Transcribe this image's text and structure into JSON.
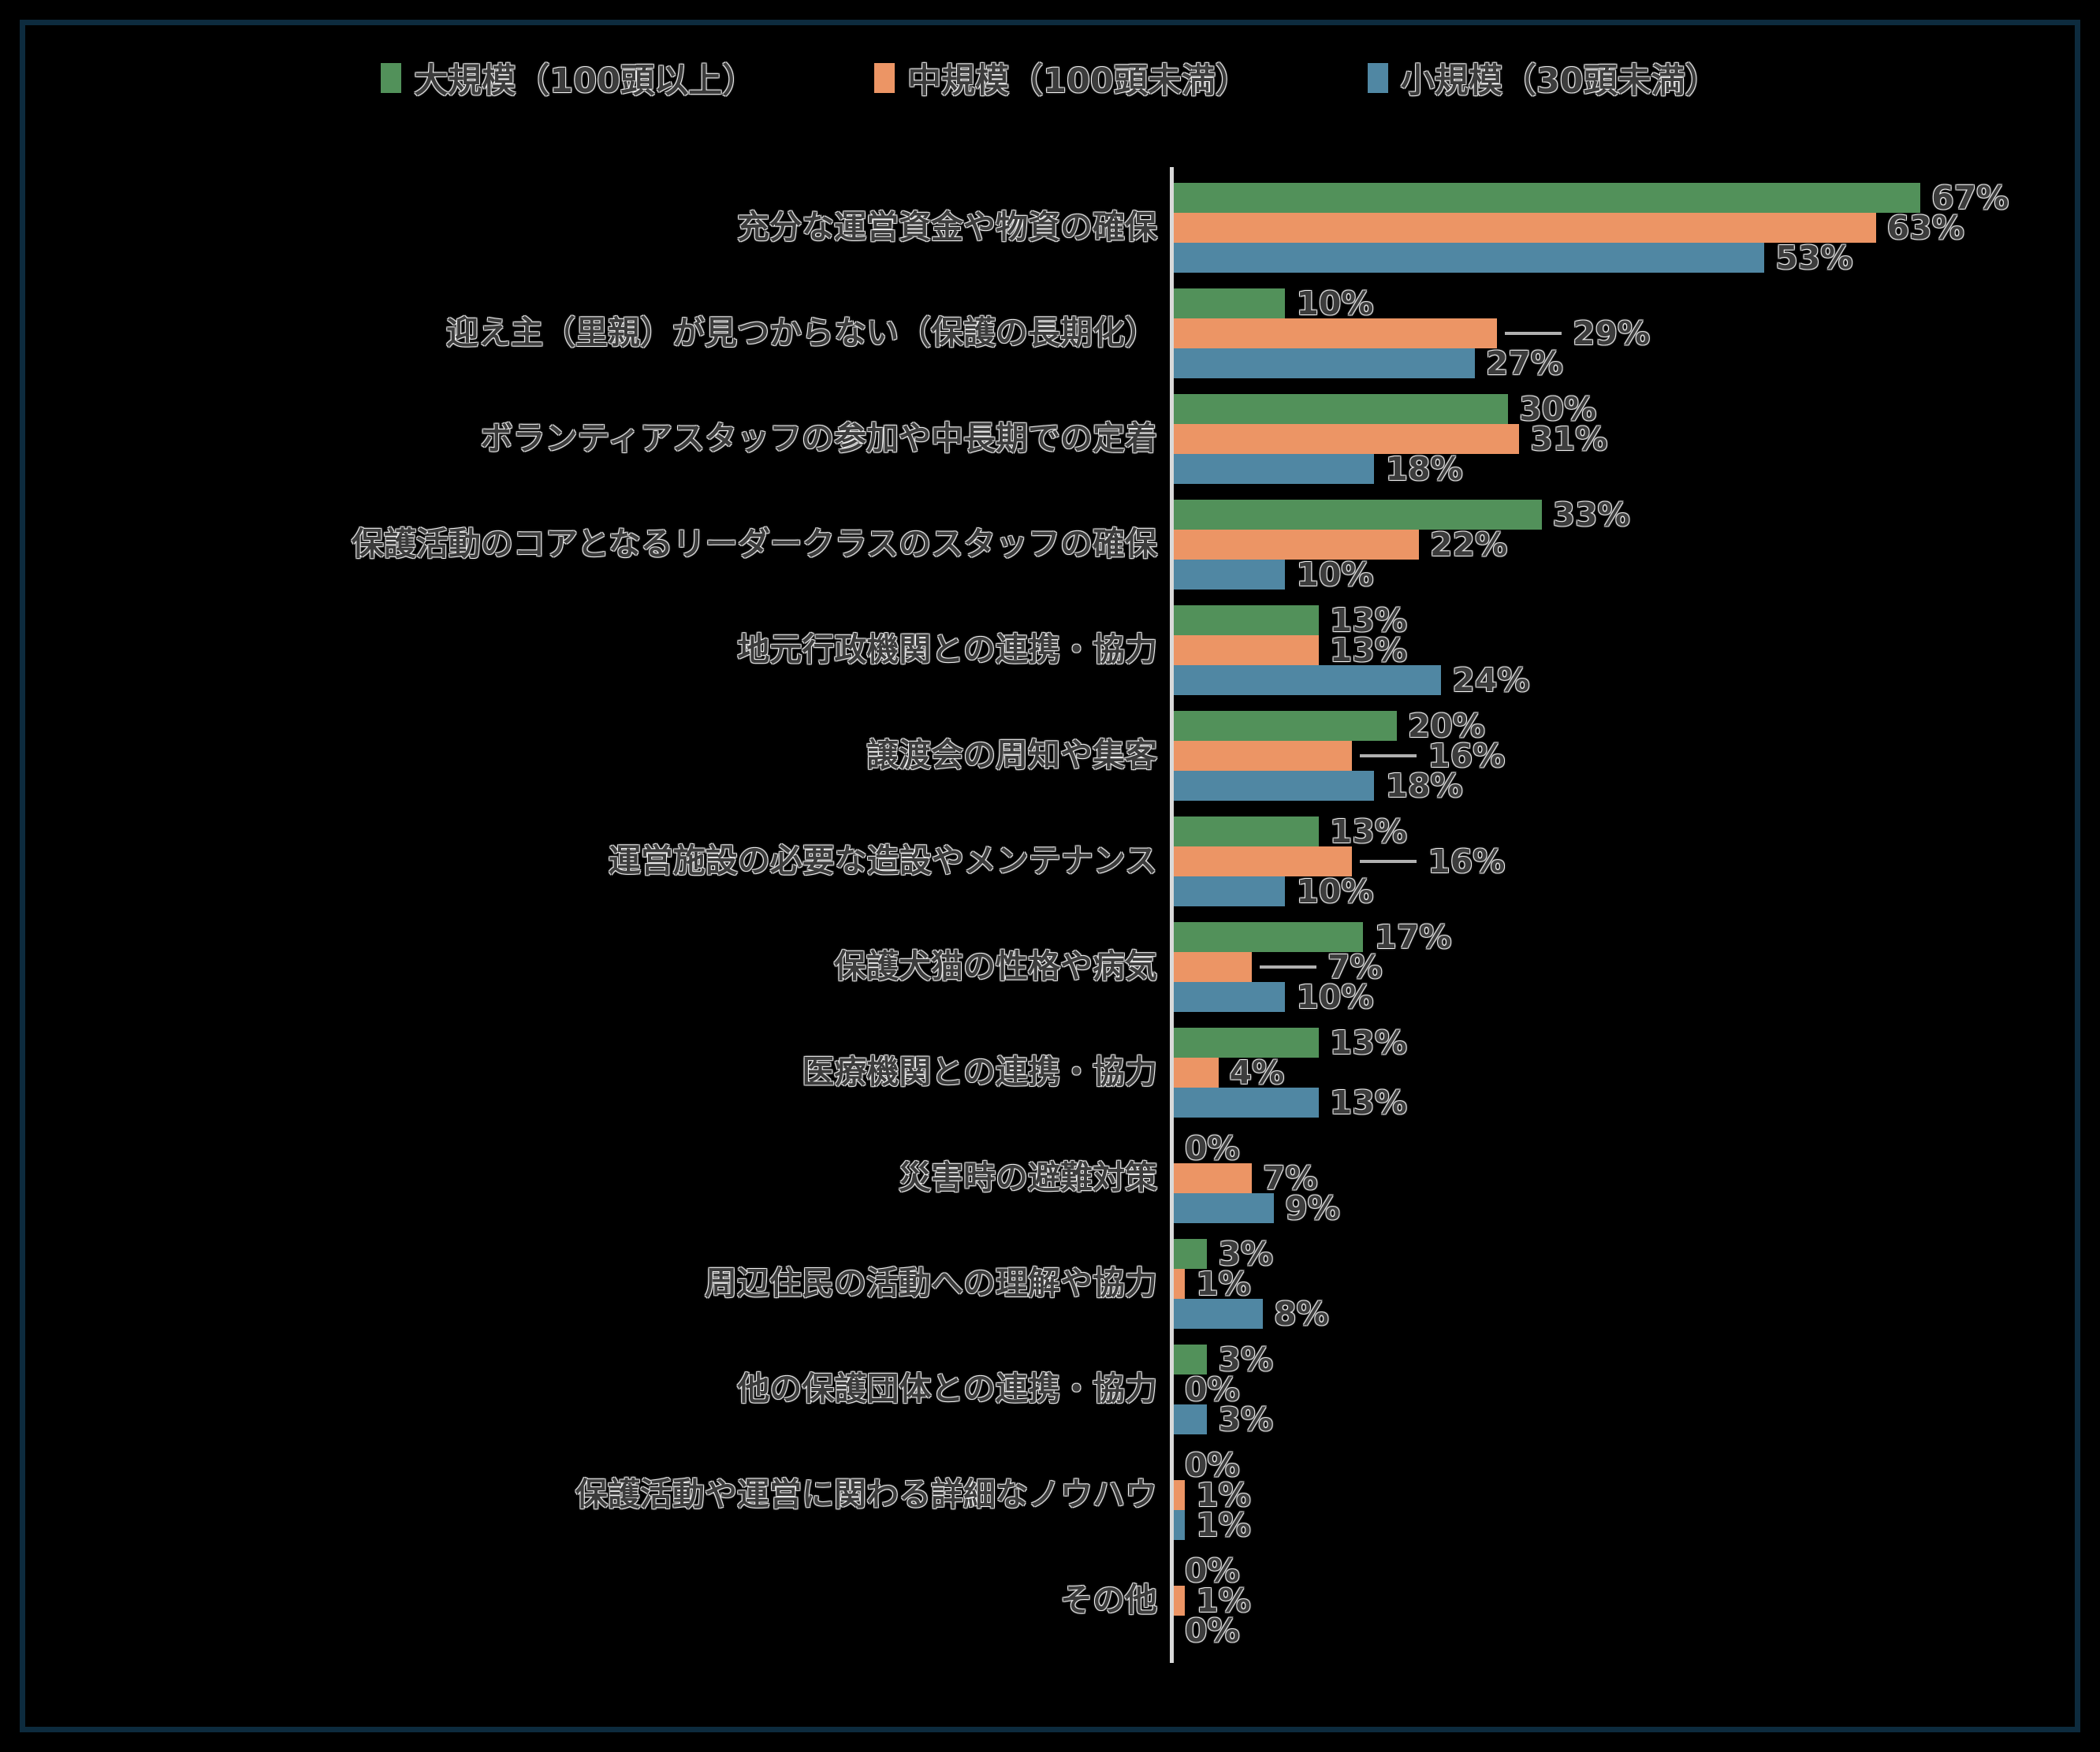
{
  "chart_data": {
    "type": "bar",
    "orientation": "horizontal",
    "title": "",
    "value_suffix": "%",
    "axis_max": 80,
    "grid": false,
    "legend_position": "top",
    "series": [
      {
        "name": "大規模（100頭以上）",
        "color": "#52915A"
      },
      {
        "name": "中規模（100頭未満）",
        "color": "#EC9565"
      },
      {
        "name": "小規模（30頭未満）",
        "color": "#5087A3"
      }
    ],
    "rows": [
      {
        "label": "充分な運営資金や物資の確保",
        "values": [
          67,
          63,
          53
        ],
        "callouts": [
          false,
          false,
          false
        ]
      },
      {
        "label": "迎え主（里親）が見つからない（保護の長期化）",
        "values": [
          10,
          29,
          27
        ],
        "callouts": [
          false,
          true,
          false
        ]
      },
      {
        "label": "ボランティアスタッフの参加や中長期での定着",
        "values": [
          30,
          31,
          18
        ],
        "callouts": [
          false,
          false,
          false
        ]
      },
      {
        "label": "保護活動のコアとなるリーダークラスのスタッフの確保",
        "values": [
          33,
          22,
          10
        ],
        "callouts": [
          false,
          false,
          false
        ]
      },
      {
        "label": "地元行政機関との連携・協力",
        "values": [
          13,
          13,
          24
        ],
        "callouts": [
          false,
          false,
          false
        ]
      },
      {
        "label": "譲渡会の周知や集客",
        "values": [
          20,
          16,
          18
        ],
        "callouts": [
          false,
          true,
          false
        ]
      },
      {
        "label": "運営施設の必要な造設やメンテナンス",
        "values": [
          13,
          16,
          10
        ],
        "callouts": [
          false,
          true,
          false
        ]
      },
      {
        "label": "保護犬猫の性格や病気",
        "values": [
          17,
          7,
          10
        ],
        "callouts": [
          false,
          true,
          false
        ]
      },
      {
        "label": "医療機関との連携・協力",
        "values": [
          13,
          4,
          13
        ],
        "callouts": [
          false,
          false,
          false
        ]
      },
      {
        "label": "災害時の避難対策",
        "values": [
          0,
          7,
          9
        ],
        "callouts": [
          false,
          false,
          false
        ]
      },
      {
        "label": "周辺住民の活動への理解や協力",
        "values": [
          3,
          1,
          8
        ],
        "callouts": [
          false,
          false,
          false
        ]
      },
      {
        "label": "他の保護団体との連携・協力",
        "values": [
          3,
          0,
          3
        ],
        "callouts": [
          false,
          false,
          false
        ]
      },
      {
        "label": "保護活動や運営に関わる詳細なノウハウ",
        "values": [
          0,
          1,
          1
        ],
        "callouts": [
          false,
          false,
          false
        ]
      },
      {
        "label": "その他",
        "values": [
          0,
          1,
          0
        ],
        "callouts": [
          false,
          false,
          false
        ]
      }
    ],
    "colors": {
      "background": "#000000",
      "frame_border": "#0d2b3e",
      "axis_line": "#d9d9d9",
      "leader_line": "#b0b0b0",
      "text": "#3c3c3c"
    }
  }
}
